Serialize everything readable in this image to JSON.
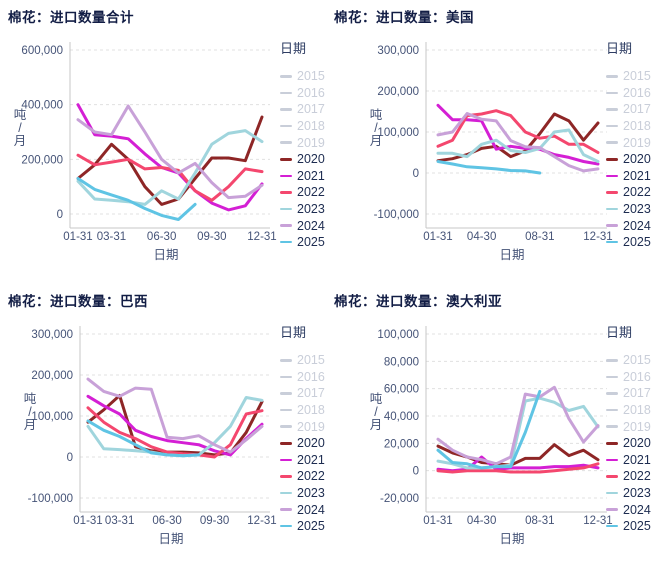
{
  "legend": {
    "title": "日期",
    "inactive_color": "#c9ced9",
    "items": [
      {
        "label": "2015",
        "active": false
      },
      {
        "label": "2016",
        "active": false
      },
      {
        "label": "2017",
        "active": false
      },
      {
        "label": "2018",
        "active": false
      },
      {
        "label": "2019",
        "active": false
      },
      {
        "label": "2020",
        "active": true,
        "color": "#8e2626"
      },
      {
        "label": "2021",
        "active": true,
        "color": "#d41fd4"
      },
      {
        "label": "2022",
        "active": true,
        "color": "#f4476e"
      },
      {
        "label": "2023",
        "active": true,
        "color": "#a0d5dd"
      },
      {
        "label": "2024",
        "active": true,
        "color": "#c8a1d8"
      },
      {
        "label": "2025",
        "active": true,
        "color": "#5fc4e4"
      }
    ]
  },
  "chart_data": [
    {
      "type": "line",
      "title": "棉花：进口数量合计",
      "xlabel": "日期",
      "ylabel": "吨/月",
      "x": [
        "01-31",
        "02-28",
        "03-31",
        "04-30",
        "05-31",
        "06-30",
        "07-31",
        "08-31",
        "09-30",
        "10-31",
        "11-30",
        "12-31"
      ],
      "xticks_shown": {
        "labels": [
          "01-31",
          "03-31",
          "06-30",
          "09-30",
          "12-31"
        ],
        "indices": [
          0,
          2,
          5,
          8,
          11
        ]
      },
      "yticks": [
        0,
        200000,
        400000,
        600000
      ],
      "ylim": [
        0,
        600000
      ],
      "grid": true,
      "legend_position": "right",
      "series": [
        {
          "name": "2020",
          "color": "#8e2626",
          "values": [
            130000,
            180000,
            255000,
            200000,
            100000,
            35000,
            55000,
            130000,
            205000,
            205000,
            195000,
            355000
          ]
        },
        {
          "name": "2021",
          "color": "#d41fd4",
          "values": [
            400000,
            290000,
            285000,
            275000,
            220000,
            170000,
            150000,
            85000,
            40000,
            15000,
            30000,
            110000
          ]
        },
        {
          "name": "2022",
          "color": "#f4476e",
          "values": [
            215000,
            180000,
            190000,
            200000,
            165000,
            170000,
            160000,
            85000,
            50000,
            100000,
            165000,
            155000
          ]
        },
        {
          "name": "2023",
          "color": "#a0d5dd",
          "values": [
            120000,
            55000,
            50000,
            45000,
            35000,
            85000,
            55000,
            150000,
            255000,
            295000,
            305000,
            265000
          ]
        },
        {
          "name": "2024",
          "color": "#c8a1d8",
          "values": [
            345000,
            300000,
            290000,
            395000,
            300000,
            200000,
            150000,
            185000,
            115000,
            60000,
            65000,
            105000
          ]
        },
        {
          "name": "2025",
          "color": "#5fc4e4",
          "values": [
            130000,
            90000,
            70000,
            50000,
            20000,
            -5000,
            -20000,
            35000
          ]
        }
      ]
    },
    {
      "type": "line",
      "title": "棉花：进口数量：美国",
      "xlabel": "日期",
      "ylabel": "吨/月",
      "x": [
        "01-31",
        "02-28",
        "03-31",
        "04-30",
        "05-31",
        "06-30",
        "07-31",
        "08-31",
        "09-30",
        "10-31",
        "11-30",
        "12-31"
      ],
      "xticks_shown": {
        "labels": [
          "01-31",
          "04-30",
          "08-31",
          "12-31"
        ],
        "indices": [
          0,
          3,
          7,
          11
        ]
      },
      "yticks": [
        -100000,
        0,
        100000,
        200000,
        300000
      ],
      "ylim": [
        -100000,
        300000
      ],
      "grid": true,
      "legend_position": "right",
      "series": [
        {
          "name": "2020",
          "color": "#8e2626",
          "values": [
            30000,
            35000,
            45000,
            60000,
            65000,
            40000,
            54000,
            96000,
            144000,
            127000,
            80000,
            122000
          ]
        },
        {
          "name": "2021",
          "color": "#d41fd4",
          "values": [
            165000,
            130000,
            130000,
            127000,
            58000,
            65000,
            60000,
            58000,
            45000,
            38000,
            28000,
            22000
          ]
        },
        {
          "name": "2022",
          "color": "#f4476e",
          "values": [
            65000,
            80000,
            140000,
            144000,
            152000,
            140000,
            100000,
            85000,
            90000,
            70000,
            70000,
            50000
          ]
        },
        {
          "name": "2023",
          "color": "#a0d5dd",
          "values": [
            48000,
            48000,
            40000,
            70000,
            80000,
            55000,
            50000,
            60000,
            100000,
            105000,
            45000,
            28000
          ]
        },
        {
          "name": "2024",
          "color": "#c8a1d8",
          "values": [
            93000,
            100000,
            145000,
            131000,
            127000,
            79000,
            64000,
            62000,
            40000,
            18000,
            5000,
            10000
          ]
        },
        {
          "name": "2025",
          "color": "#5fc4e4",
          "values": [
            28000,
            22000,
            15000,
            13000,
            10000,
            6000,
            5000,
            0
          ]
        }
      ]
    },
    {
      "type": "line",
      "title": "棉花：进口数量：巴西",
      "xlabel": "日期",
      "ylabel": "吨/月",
      "x": [
        "01-31",
        "02-28",
        "03-31",
        "04-30",
        "05-31",
        "06-30",
        "07-31",
        "08-31",
        "09-30",
        "10-31",
        "11-30",
        "12-31"
      ],
      "xticks_shown": {
        "labels": [
          "01-31",
          "03-31",
          "06-30",
          "09-30",
          "12-31"
        ],
        "indices": [
          0,
          2,
          5,
          8,
          11
        ]
      },
      "yticks": [
        -100000,
        0,
        100000,
        200000,
        300000
      ],
      "ylim": [
        -100000,
        300000
      ],
      "grid": true,
      "legend_position": "right",
      "series": [
        {
          "name": "2020",
          "color": "#8e2626",
          "values": [
            85000,
            115000,
            150000,
            25000,
            15000,
            12000,
            12000,
            10000,
            5000,
            10000,
            60000,
            135000
          ]
        },
        {
          "name": "2021",
          "color": "#d41fd4",
          "values": [
            148000,
            125000,
            105000,
            65000,
            50000,
            40000,
            35000,
            30000,
            15000,
            5000,
            45000,
            80000
          ]
        },
        {
          "name": "2022",
          "color": "#f4476e",
          "values": [
            120000,
            85000,
            60000,
            45000,
            25000,
            12000,
            8000,
            5000,
            0,
            30000,
            105000,
            113000
          ]
        },
        {
          "name": "2023",
          "color": "#a0d5dd",
          "values": [
            75000,
            20000,
            18000,
            15000,
            12000,
            5000,
            3000,
            5000,
            35000,
            75000,
            145000,
            138000
          ]
        },
        {
          "name": "2024",
          "color": "#c8a1d8",
          "values": [
            190000,
            160000,
            148000,
            168000,
            165000,
            48000,
            45000,
            52000,
            30000,
            12000,
            42000,
            75000
          ]
        },
        {
          "name": "2025",
          "color": "#5fc4e4",
          "values": [
            88000,
            65000,
            50000,
            30000,
            10000,
            5000,
            3000,
            5000
          ]
        }
      ]
    },
    {
      "type": "line",
      "title": "棉花：进口数量：澳大利亚",
      "xlabel": "日期",
      "ylabel": "吨/月",
      "x": [
        "01-31",
        "02-28",
        "03-31",
        "04-30",
        "05-31",
        "06-30",
        "07-31",
        "08-31",
        "09-30",
        "10-31",
        "11-30",
        "12-31"
      ],
      "xticks_shown": {
        "labels": [
          "01-31",
          "04-30",
          "08-31",
          "12-31"
        ],
        "indices": [
          0,
          3,
          7,
          11
        ]
      },
      "yticks": [
        -20000,
        0,
        20000,
        40000,
        60000,
        80000,
        100000
      ],
      "ylim": [
        -20000,
        100000
      ],
      "grid": true,
      "legend_position": "right",
      "series": [
        {
          "name": "2020",
          "color": "#8e2626",
          "values": [
            18000,
            13000,
            10000,
            6000,
            5000,
            4000,
            9000,
            9000,
            19000,
            11000,
            15000,
            8000
          ]
        },
        {
          "name": "2021",
          "color": "#d41fd4",
          "values": [
            1000,
            0,
            1000,
            10000,
            1000,
            2000,
            2000,
            2000,
            3000,
            3000,
            4000,
            2000
          ]
        },
        {
          "name": "2022",
          "color": "#f4476e",
          "values": [
            0,
            -1000,
            0,
            0,
            0,
            -1000,
            -1000,
            -1000,
            0,
            1000,
            2000,
            5000
          ]
        },
        {
          "name": "2023",
          "color": "#a0d5dd",
          "values": [
            7000,
            5000,
            2000,
            2000,
            3000,
            4000,
            51000,
            53000,
            50000,
            44000,
            47000,
            32000
          ]
        },
        {
          "name": "2024",
          "color": "#c8a1d8",
          "values": [
            23000,
            15000,
            10000,
            8000,
            5000,
            10000,
            56000,
            54000,
            61000,
            38000,
            21000,
            33000
          ]
        },
        {
          "name": "2025",
          "color": "#5fc4e4",
          "values": [
            15000,
            6000,
            5000,
            2000,
            3000,
            3000,
            28000,
            58000
          ]
        }
      ]
    }
  ]
}
